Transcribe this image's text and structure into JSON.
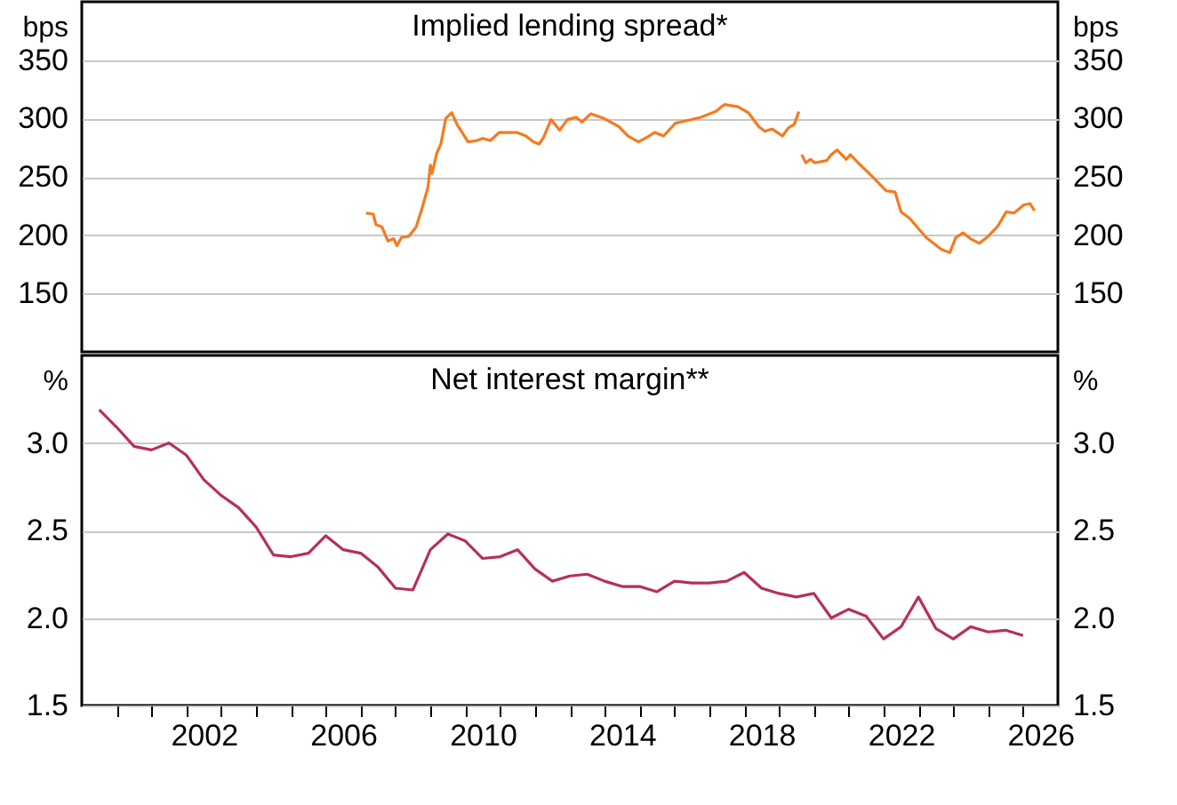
{
  "chart_data": [
    {
      "type": "line",
      "title": "Implied lending spread*",
      "ylabel": "bps",
      "y2label": "bps",
      "ylim": [
        100,
        400
      ],
      "yticks": [
        150,
        200,
        250,
        300,
        350
      ],
      "y2lim": [
        100,
        400
      ],
      "y2ticks": [
        150,
        200,
        250,
        300,
        350
      ],
      "xlim": [
        1999,
        2027
      ],
      "grid": "y",
      "legend": false,
      "tick_labels": "y",
      "line_style": "solid",
      "marker": "none",
      "series": [
        {
          "color": "#f47b20",
          "x": [
            2007.15,
            2007.36,
            2007.44,
            2007.61,
            2007.78,
            2007.95,
            2008.04,
            2008.17,
            2008.38,
            2008.59,
            2008.76,
            2008.93,
            2009.0,
            2009.05,
            2009.18,
            2009.3,
            2009.44,
            2009.61,
            2009.78,
            2010.08,
            2010.33,
            2010.5,
            2010.72,
            2010.97,
            2011.48,
            2011.74,
            2011.95,
            2012.12,
            2012.25,
            2012.46,
            2012.71,
            2012.93,
            2013.18,
            2013.35,
            2013.6,
            2013.98,
            2014.41,
            2014.67,
            2014.97,
            2015.22,
            2015.43,
            2015.69,
            2016.03,
            2016.33,
            2016.76,
            2017.18,
            2017.44,
            2017.82,
            2018.12,
            2018.42,
            2018.59,
            2018.8,
            2019.1,
            2019.27,
            2019.44,
            2019.57,
            2019.61,
            2019.65,
            2019.77,
            2019.9,
            2020.03,
            2020.37,
            2020.5,
            2020.67,
            2020.93,
            2021.05,
            2021.27,
            2021.65,
            2022.08,
            2022.33,
            2022.5,
            2022.76,
            2023.22,
            2023.65,
            2023.9,
            2024.07,
            2024.28,
            2024.49,
            2024.75,
            2025.0,
            2025.26,
            2025.52,
            2025.74,
            2026.03,
            2026.2,
            2026.33
          ],
          "values": [
            219,
            218,
            209,
            207,
            195,
            197,
            191,
            198,
            199,
            207,
            223,
            241,
            260,
            253,
            270,
            278,
            300,
            305,
            294,
            280,
            281,
            283,
            281,
            288,
            288,
            285,
            280,
            278,
            284,
            299,
            290,
            299,
            301,
            297,
            304,
            300,
            293,
            285,
            280,
            284,
            288,
            285,
            296,
            298,
            301,
            306,
            312,
            310,
            305,
            293,
            289,
            291,
            285,
            292,
            295,
            306,
            null,
            269,
            262,
            265,
            262,
            264,
            269,
            273,
            265,
            269,
            262,
            251,
            238,
            237,
            220,
            214,
            198,
            188,
            185,
            198,
            202,
            197,
            193,
            199,
            207,
            220,
            219,
            226,
            227,
            221
          ]
        }
      ]
    },
    {
      "type": "line",
      "title": "Net interest margin**",
      "ylabel": "%",
      "y2label": "%",
      "ylim": [
        1.5,
        3.5
      ],
      "yticks": [
        {
          "value": 1.5,
          "label": "1.5"
        },
        {
          "value": 2,
          "label": "2.0"
        },
        {
          "value": 2.5,
          "label": "2.5"
        },
        {
          "value": 3,
          "label": "3.0"
        }
      ],
      "y2lim": [
        1.5,
        3.5
      ],
      "y2ticks": [
        {
          "value": 1.5,
          "label": "1.5"
        },
        {
          "value": 2,
          "label": "2.0"
        },
        {
          "value": 2.5,
          "label": "2.5"
        },
        {
          "value": 3,
          "label": "3.0"
        }
      ],
      "xlim": [
        1999,
        2027
      ],
      "xticks": [
        {
          "value": 2000,
          "label": null
        },
        {
          "value": 2001,
          "label": null
        },
        {
          "value": 2002,
          "label": null
        },
        {
          "value": 2002.5,
          "label": "2002"
        },
        {
          "value": 2003,
          "label": null
        },
        {
          "value": 2004,
          "label": null
        },
        {
          "value": 2005,
          "label": null
        },
        {
          "value": 2006,
          "label": null
        },
        {
          "value": 2006.5,
          "label": "2006"
        },
        {
          "value": 2007,
          "label": null
        },
        {
          "value": 2008,
          "label": null
        },
        {
          "value": 2009,
          "label": null
        },
        {
          "value": 2010,
          "label": null
        },
        {
          "value": 2010.5,
          "label": "2010"
        },
        {
          "value": 2011,
          "label": null
        },
        {
          "value": 2012,
          "label": null
        },
        {
          "value": 2013,
          "label": null
        },
        {
          "value": 2014,
          "label": null
        },
        {
          "value": 2014.5,
          "label": "2014"
        },
        {
          "value": 2015,
          "label": null
        },
        {
          "value": 2016,
          "label": null
        },
        {
          "value": 2017,
          "label": null
        },
        {
          "value": 2018,
          "label": null
        },
        {
          "value": 2018.5,
          "label": "2018"
        },
        {
          "value": 2019,
          "label": null
        },
        {
          "value": 2020,
          "label": null
        },
        {
          "value": 2021,
          "label": null
        },
        {
          "value": 2022,
          "label": null
        },
        {
          "value": 2022.5,
          "label": "2022"
        },
        {
          "value": 2023,
          "label": null
        },
        {
          "value": 2024,
          "label": null
        },
        {
          "value": 2025,
          "label": null
        },
        {
          "value": 2026,
          "label": null
        },
        {
          "value": 2026.5,
          "label": "2026"
        }
      ],
      "grid": "y",
      "legend": false,
      "line_style": "solid",
      "marker": "none",
      "series": [
        {
          "color": "#b5305f",
          "x": [
            1999.5,
            2000.0,
            2000.5,
            2001.0,
            2001.5,
            2002.0,
            2002.5,
            2003.0,
            2003.5,
            2004.0,
            2004.5,
            2005.0,
            2005.5,
            2006.0,
            2006.5,
            2007.0,
            2007.5,
            2008.0,
            2008.5,
            2009.0,
            2009.5,
            2010.0,
            2010.5,
            2011.0,
            2011.5,
            2012.0,
            2012.5,
            2013.0,
            2013.5,
            2014.0,
            2014.5,
            2015.0,
            2015.5,
            2016.0,
            2016.5,
            2017.0,
            2017.5,
            2018.0,
            2018.5,
            2019.0,
            2019.5,
            2020.0,
            2020.5,
            2021.0,
            2021.5,
            2022.0,
            2022.5,
            2023.0,
            2023.5,
            2024.0,
            2024.5,
            2025.0,
            2025.5,
            2026.0
          ],
          "values": [
            3.19,
            3.09,
            2.98,
            2.96,
            3.0,
            2.93,
            2.79,
            2.7,
            2.63,
            2.52,
            2.36,
            2.35,
            2.37,
            2.47,
            2.39,
            2.37,
            2.29,
            2.17,
            2.16,
            2.39,
            2.48,
            2.44,
            2.34,
            2.35,
            2.39,
            2.28,
            2.21,
            2.24,
            2.25,
            2.21,
            2.18,
            2.18,
            2.15,
            2.21,
            2.2,
            2.2,
            2.21,
            2.26,
            2.17,
            2.14,
            2.12,
            2.14,
            2.0,
            2.05,
            2.01,
            1.88,
            1.95,
            2.12,
            1.94,
            1.88,
            1.95,
            1.92,
            1.93,
            1.9
          ]
        }
      ]
    }
  ]
}
